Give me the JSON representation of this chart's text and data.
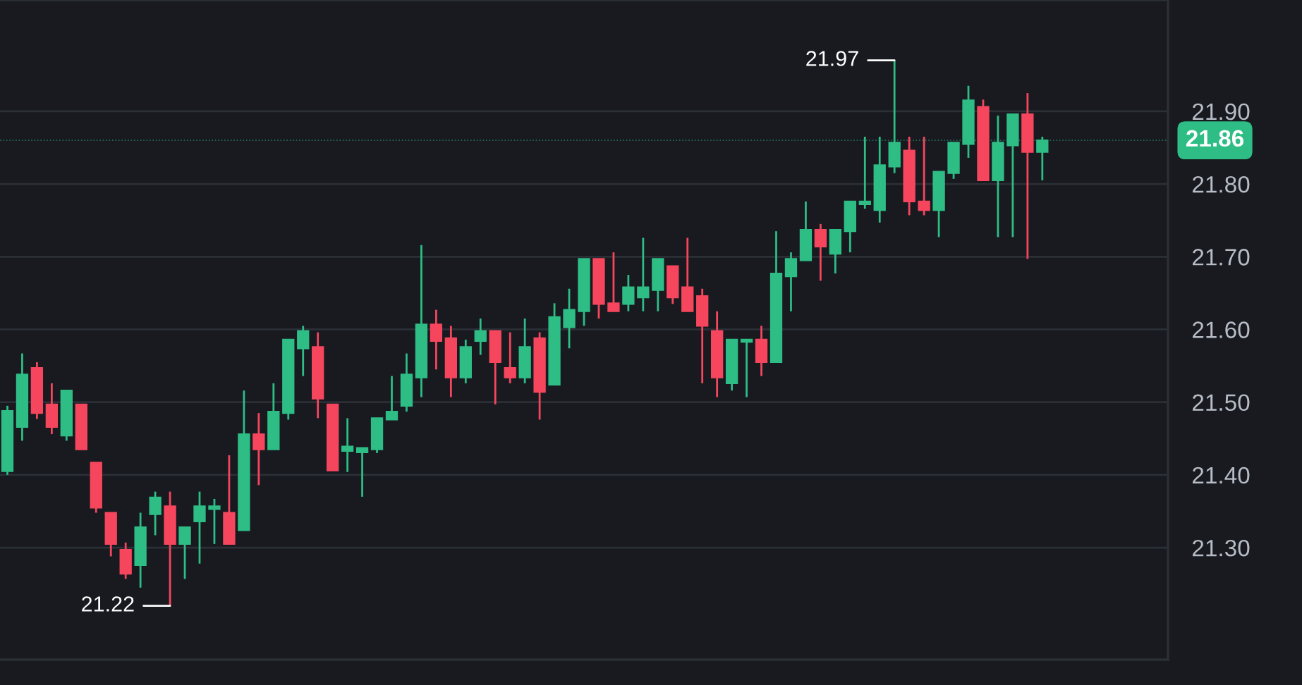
{
  "chart_data": {
    "type": "candlestick",
    "categories": [
      null,
      null,
      null,
      null,
      null,
      null,
      null,
      null,
      null,
      null,
      null,
      null,
      null,
      null,
      null,
      null,
      null,
      null,
      null,
      null,
      null,
      null,
      null,
      null,
      null,
      null,
      null,
      null,
      null,
      null,
      null,
      null,
      null,
      null,
      null,
      null,
      null,
      null,
      null,
      null,
      null,
      null,
      null,
      null,
      null,
      null,
      null,
      null,
      null,
      null,
      null,
      null,
      null,
      null,
      null,
      null,
      null,
      null,
      null,
      null,
      null,
      null,
      null,
      null,
      null,
      null,
      null,
      null,
      null,
      null,
      null,
      null,
      null,
      null,
      null,
      null,
      null,
      null,
      null
    ],
    "ohlc": [
      [
        21.405,
        21.495,
        21.4,
        21.488
      ],
      [
        21.466,
        21.567,
        21.447,
        21.538
      ],
      [
        21.547,
        21.555,
        21.477,
        21.485
      ],
      [
        21.497,
        21.526,
        21.456,
        21.466
      ],
      [
        21.454,
        21.516,
        21.447,
        21.516
      ],
      [
        21.497,
        21.497,
        21.435,
        21.435
      ],
      [
        21.417,
        21.417,
        21.348,
        21.355
      ],
      [
        21.348,
        21.348,
        21.288,
        21.305
      ],
      [
        21.297,
        21.307,
        21.257,
        21.264
      ],
      [
        21.276,
        21.348,
        21.245,
        21.328
      ],
      [
        21.346,
        21.377,
        21.317,
        21.369
      ],
      [
        21.357,
        21.377,
        21.22,
        21.305
      ],
      [
        21.305,
        21.328,
        21.257,
        21.328
      ],
      [
        21.336,
        21.377,
        21.278,
        21.357
      ],
      [
        21.353,
        21.367,
        21.305,
        21.357
      ],
      [
        21.348,
        21.427,
        21.305,
        21.305
      ],
      [
        21.324,
        21.516,
        21.324,
        21.456
      ],
      [
        21.456,
        21.485,
        21.386,
        21.435
      ],
      [
        21.435,
        21.526,
        21.435,
        21.487
      ],
      [
        21.485,
        21.586,
        21.476,
        21.586
      ],
      [
        21.574,
        21.605,
        21.536,
        21.598
      ],
      [
        21.576,
        21.596,
        21.478,
        21.505
      ],
      [
        21.497,
        21.497,
        21.406,
        21.406
      ],
      [
        21.433,
        21.478,
        21.404,
        21.439
      ],
      [
        21.431,
        21.437,
        21.37,
        21.437
      ],
      [
        21.435,
        21.478,
        21.43,
        21.478
      ],
      [
        21.476,
        21.536,
        21.476,
        21.487
      ],
      [
        21.495,
        21.567,
        21.487,
        21.538
      ],
      [
        21.534,
        21.716,
        21.507,
        21.607
      ],
      [
        21.607,
        21.627,
        21.545,
        21.584
      ],
      [
        21.588,
        21.605,
        21.507,
        21.534
      ],
      [
        21.534,
        21.586,
        21.526,
        21.576
      ],
      [
        21.584,
        21.615,
        21.565,
        21.598
      ],
      [
        21.598,
        21.598,
        21.497,
        21.555
      ],
      [
        21.547,
        21.596,
        21.526,
        21.534
      ],
      [
        21.534,
        21.615,
        21.526,
        21.576
      ],
      [
        21.588,
        21.596,
        21.476,
        21.514
      ],
      [
        21.524,
        21.636,
        21.524,
        21.617
      ],
      [
        21.603,
        21.656,
        21.574,
        21.627
      ],
      [
        21.625,
        21.697,
        21.605,
        21.697
      ],
      [
        21.697,
        21.697,
        21.615,
        21.635
      ],
      [
        21.636,
        21.706,
        21.625,
        21.625
      ],
      [
        21.635,
        21.675,
        21.625,
        21.658
      ],
      [
        21.644,
        21.726,
        21.625,
        21.658
      ],
      [
        21.654,
        21.697,
        21.625,
        21.697
      ],
      [
        21.687,
        21.687,
        21.635,
        21.644
      ],
      [
        21.658,
        21.726,
        21.625,
        21.625
      ],
      [
        21.646,
        21.656,
        21.526,
        21.605
      ],
      [
        21.598,
        21.625,
        21.507,
        21.534
      ],
      [
        21.526,
        21.586,
        21.516,
        21.586
      ],
      [
        21.583,
        21.586,
        21.507,
        21.586
      ],
      [
        21.586,
        21.605,
        21.536,
        21.555
      ],
      [
        21.555,
        21.735,
        21.555,
        21.677
      ],
      [
        21.673,
        21.706,
        21.625,
        21.697
      ],
      [
        21.695,
        21.776,
        21.695,
        21.737
      ],
      [
        21.737,
        21.745,
        21.667,
        21.714
      ],
      [
        21.704,
        21.737,
        21.677,
        21.737
      ],
      [
        21.735,
        21.776,
        21.706,
        21.776
      ],
      [
        21.772,
        21.865,
        21.766,
        21.776
      ],
      [
        21.764,
        21.865,
        21.747,
        21.826
      ],
      [
        21.824,
        21.97,
        21.815,
        21.857
      ],
      [
        21.846,
        21.865,
        21.757,
        21.776
      ],
      [
        21.776,
        21.865,
        21.757,
        21.764
      ],
      [
        21.764,
        21.817,
        21.727,
        21.817
      ],
      [
        21.815,
        21.857,
        21.807,
        21.857
      ],
      [
        21.855,
        21.935,
        21.836,
        21.915
      ],
      [
        21.906,
        21.916,
        21.805,
        21.805
      ],
      [
        21.805,
        21.894,
        21.727,
        21.857
      ],
      [
        21.853,
        21.896,
        21.727,
        21.896
      ],
      [
        21.896,
        21.925,
        21.697,
        21.844
      ],
      [
        21.844,
        21.865,
        21.805,
        21.86
      ],
      null,
      null,
      null,
      null,
      null,
      null,
      null,
      null
    ],
    "ylim": [
      21.146,
      22.053
    ],
    "yticks": [
      {
        "value": 21.3,
        "label": "21.30"
      },
      {
        "value": 21.4,
        "label": "21.40"
      },
      {
        "value": 21.5,
        "label": "21.50"
      },
      {
        "value": 21.6,
        "label": "21.60"
      },
      {
        "value": 21.7,
        "label": "21.70"
      },
      {
        "value": 21.8,
        "label": "21.80"
      },
      {
        "value": 21.9,
        "label": "21.90"
      }
    ],
    "grid": true,
    "ref_lines": [
      {
        "axis": "y",
        "value": 21.86,
        "label": "21.86",
        "color": "#2ebd85",
        "line_style": "dotted"
      }
    ],
    "annotations": [
      "21.97",
      "21.22"
    ]
  }
}
